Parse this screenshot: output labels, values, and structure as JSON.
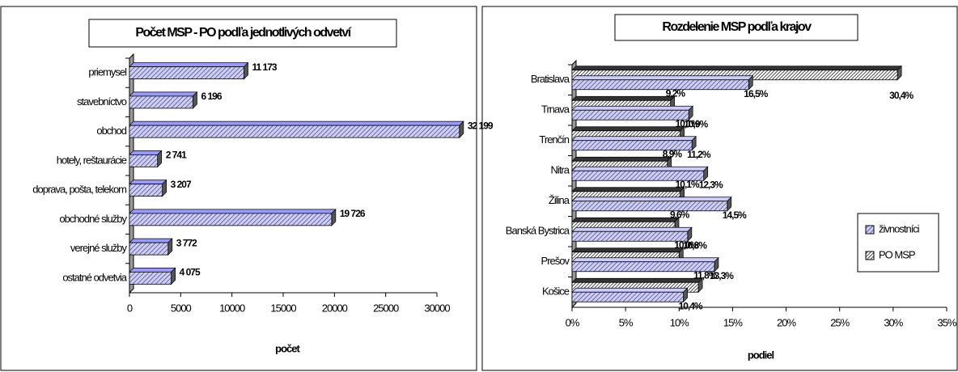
{
  "chart_data": [
    {
      "type": "bar",
      "orientation": "horizontal",
      "title": "Počet MSP - PO podľa jednotlivých odvetví",
      "categories": [
        "priemysel",
        "stavebníctvo",
        "obchod",
        "hotely, reštaurácie",
        "doprava, pošta, telekom",
        "obchodné služby",
        "verejné služby",
        "ostatné odvetvia"
      ],
      "values": [
        11173,
        6196,
        32199,
        2741,
        3207,
        19726,
        3772,
        4075
      ],
      "value_labels": [
        "11 173",
        "6 196",
        "32 199",
        "2 741",
        "3 207",
        "19 726",
        "3 772",
        "4 075"
      ],
      "color": "#9999ff",
      "xlim": [
        0,
        30000
      ],
      "xticks": [
        0,
        5000,
        10000,
        15000,
        20000,
        25000,
        30000
      ],
      "xlabel": "počet"
    },
    {
      "type": "bar",
      "orientation": "horizontal",
      "title": "Rozdelenie MSP podľa krajov",
      "categories": [
        "Bratislava",
        "Trnava",
        "Trenčín",
        "Nitra",
        "Žilina",
        "Banská Bystrica",
        "Prešov",
        "Košice"
      ],
      "series": [
        {
          "name": "PO MSP",
          "color": "#333333",
          "values": [
            30.4,
            9.2,
            10.1,
            8.9,
            10.1,
            9.6,
            10.0,
            11.8
          ],
          "value_labels": [
            "30,4%",
            "9,2%",
            "10,1%",
            "8,9%",
            "10,1%",
            "9,6%",
            "10,0%",
            "11,8%"
          ]
        },
        {
          "name": "živnostníci",
          "color": "#ccccff",
          "values": [
            16.5,
            10.9,
            11.2,
            12.3,
            14.5,
            10.8,
            13.3,
            10.4
          ],
          "value_labels": [
            "16,5%",
            "10,9%",
            "11,2%",
            "12,3%",
            "14,5%",
            "10,8%",
            "13,3%",
            "10,4%"
          ]
        }
      ],
      "xlim": [
        0,
        35
      ],
      "xticks": [
        {
          "value": 0,
          "label": "0%"
        },
        {
          "value": 5,
          "label": "5%"
        },
        {
          "value": 10,
          "label": "10%"
        },
        {
          "value": 15,
          "label": "15%"
        },
        {
          "value": 20,
          "label": "20%"
        },
        {
          "value": 25,
          "label": "25%"
        },
        {
          "value": 30,
          "label": "30%"
        },
        {
          "value": 35,
          "label": "35%"
        }
      ],
      "xlabel": "podiel",
      "legend": "right"
    }
  ]
}
